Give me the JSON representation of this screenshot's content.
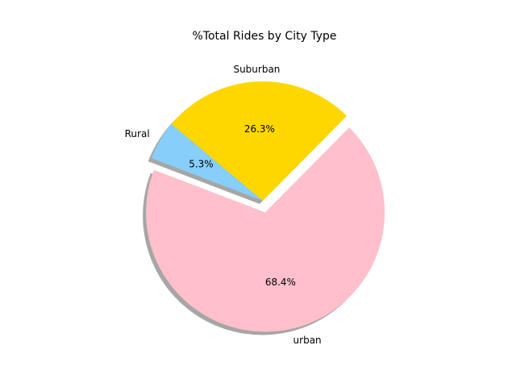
{
  "chart_data": {
    "type": "pie",
    "title": "%Total Rides by City Type",
    "slices": [
      {
        "label": "Rural",
        "value": 5.3,
        "pct_label": "5.3%",
        "color": "#87CEFA",
        "explode": 0.0
      },
      {
        "label": "urban",
        "value": 68.4,
        "pct_label": "68.4%",
        "color": "#FFC0CB",
        "explode": 0.1
      },
      {
        "label": "Suburban",
        "value": 26.3,
        "pct_label": "26.3%",
        "color": "#FFD700",
        "explode": 0.0
      }
    ],
    "start_angle_deg": 140,
    "shadow": true,
    "legend": "none"
  }
}
